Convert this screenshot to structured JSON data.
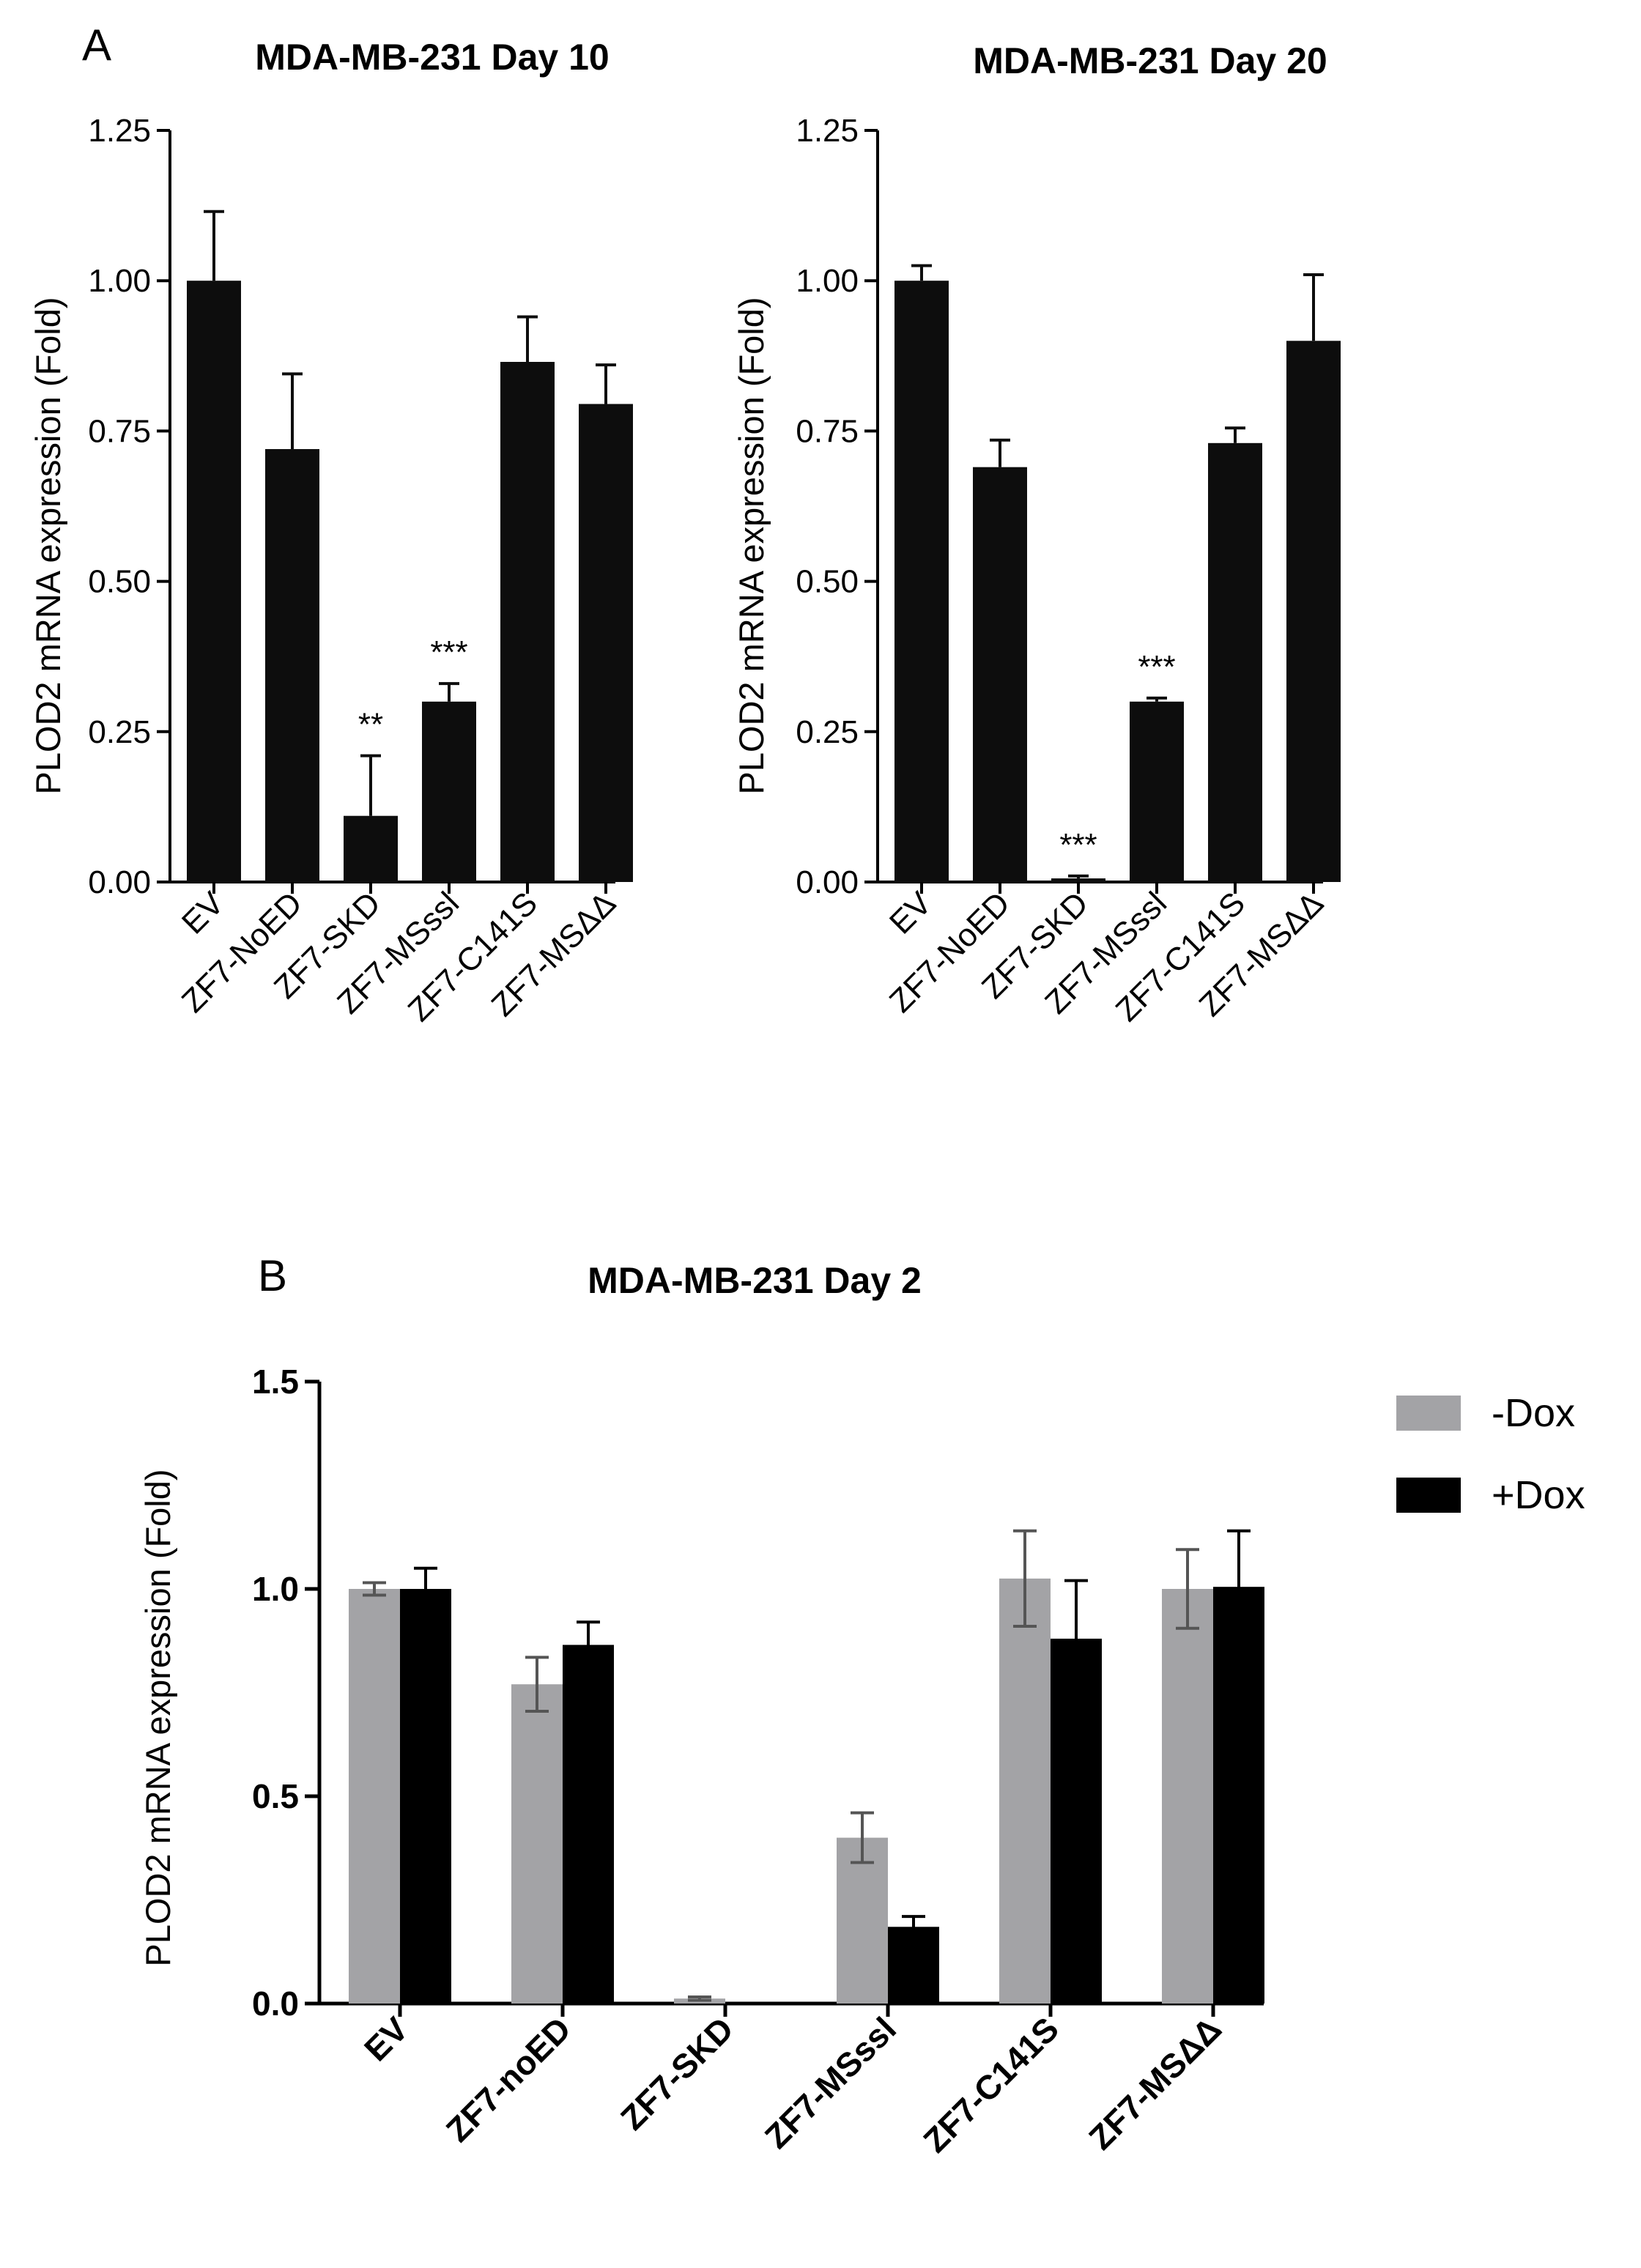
{
  "chart_data": [
    {
      "type": "bar",
      "panel": "A",
      "title": "MDA-MB-231 Day 10",
      "xlabel": "",
      "ylabel": "PLOD2 mRNA expression (Fold)",
      "ylim": [
        0,
        1.25
      ],
      "yticks": [
        "0.00",
        "0.25",
        "0.50",
        "0.75",
        "1.00",
        "1.25"
      ],
      "categories": [
        "EV",
        "ZF7-NoED",
        "ZF7-SKD",
        "ZF7-MSssl",
        "ZF7-C141S",
        "ZF7-MSΔΔ"
      ],
      "values": [
        1.0,
        0.72,
        0.11,
        0.3,
        0.865,
        0.795
      ],
      "errors": [
        0.115,
        0.125,
        0.1,
        0.03,
        0.075,
        0.065
      ],
      "annotations": [
        "",
        "",
        "**",
        "***",
        "",
        ""
      ],
      "color": "#0d0d0d"
    },
    {
      "type": "bar",
      "title": "MDA-MB-231 Day 20",
      "xlabel": "",
      "ylabel": "PLOD2 mRNA expression (Fold)",
      "ylim": [
        0,
        1.25
      ],
      "yticks": [
        "0.00",
        "0.25",
        "0.50",
        "0.75",
        "1.00",
        "1.25"
      ],
      "categories": [
        "EV",
        "ZF7-NoED",
        "ZF7-SKD",
        "ZF7-MSssl",
        "ZF7-C141S",
        "ZF7-MSΔΔ"
      ],
      "values": [
        1.0,
        0.69,
        0.006,
        0.3,
        0.73,
        0.9
      ],
      "errors": [
        0.025,
        0.045,
        0.004,
        0.006,
        0.025,
        0.11
      ],
      "annotations": [
        "",
        "",
        "***",
        "***",
        "",
        ""
      ],
      "color": "#0d0d0d"
    },
    {
      "type": "bar",
      "panel": "B",
      "title": "MDA-MB-231 Day 2",
      "xlabel": "",
      "ylabel": "PLOD2 mRNA expression (Fold)",
      "ylim": [
        0,
        1.5
      ],
      "yticks": [
        "0.0",
        "0.5",
        "1.0",
        "1.5"
      ],
      "categories": [
        "EV",
        "ZF7-noED",
        "ZF7-SKD",
        "ZF7-MSssl",
        "ZF7-C141S",
        "ZF7-MSΔΔ"
      ],
      "series": [
        {
          "name": "-Dox",
          "color": "#a3a3a6",
          "values": [
            1.0,
            0.77,
            0.012,
            0.4,
            1.025,
            1.0
          ],
          "errors": [
            0.015,
            0.065,
            0.004,
            0.06,
            0.115,
            0.095
          ]
        },
        {
          "name": "+Dox",
          "color": "#000000",
          "values": [
            1.0,
            0.865,
            0.0,
            0.185,
            0.88,
            1.005
          ],
          "errors": [
            0.05,
            0.055,
            0.0,
            0.025,
            0.14,
            0.135
          ]
        }
      ],
      "legend": "top-right"
    }
  ]
}
